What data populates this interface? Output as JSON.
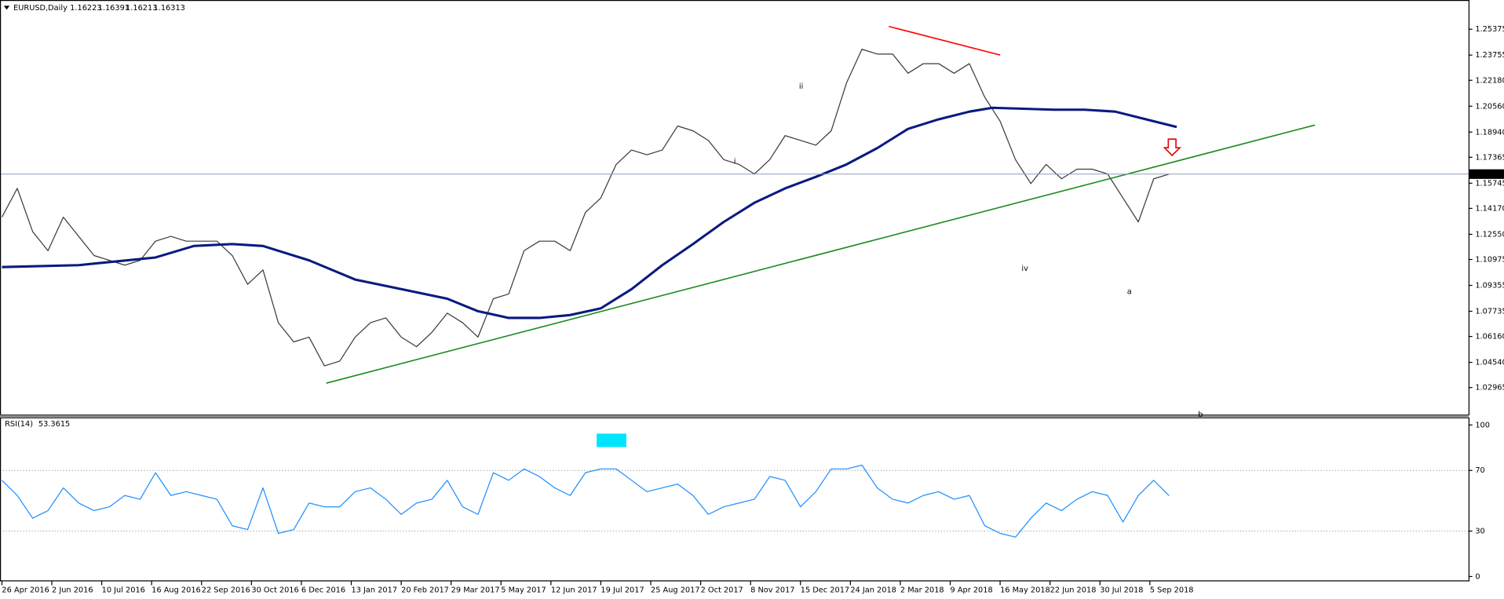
{
  "chart_data": [
    {
      "type": "line",
      "title": "EURUSD,Daily",
      "ohlc": [
        1.16223,
        1.16391,
        1.16213,
        1.16313
      ],
      "xlim": [
        -1,
        764
      ],
      "ylim": [
        1.01285,
        1.272
      ],
      "yticks": [
        1.25375,
        1.23755,
        {
          "value": 1.2218,
          "label": "1.22180"
        },
        {
          "value": 1.2056,
          "label": "1.20560"
        },
        {
          "value": 1.1894,
          "label": "1.18940"
        },
        1.17365,
        1.15745,
        {
          "value": 1.1417,
          "label": "1.14170"
        },
        {
          "value": 1.1255,
          "label": "1.12550"
        },
        1.10975,
        1.09355,
        1.07735,
        {
          "value": 1.0616,
          "label": "1.06160"
        },
        {
          "value": 1.0454,
          "label": "1.04540"
        },
        1.02965
      ],
      "xticks": [
        {
          "value": 0,
          "label": "26 Apr 2016"
        },
        {
          "value": 26,
          "label": "2 Jun 2016"
        },
        {
          "value": 52,
          "label": "10 Jul 2016"
        },
        {
          "value": 78,
          "label": "16 Aug 2016"
        },
        {
          "value": 104,
          "label": "22 Sep 2016"
        },
        {
          "value": 130,
          "label": "30 Oct 2016"
        },
        {
          "value": 156,
          "label": "6 Dec 2016"
        },
        {
          "value": 182,
          "label": "13 Jan 2017"
        },
        {
          "value": 208,
          "label": "20 Feb 2017"
        },
        {
          "value": 234,
          "label": "29 Mar 2017"
        },
        {
          "value": 260,
          "label": "5 May 2017"
        },
        {
          "value": 286,
          "label": "12 Jun 2017"
        },
        {
          "value": 312,
          "label": "19 Jul 2017"
        },
        {
          "value": 338,
          "label": "25 Aug 2017"
        },
        {
          "value": 364,
          "label": "2 Oct 2017"
        },
        {
          "value": 390,
          "label": "8 Nov 2017"
        },
        {
          "value": 416,
          "label": "15 Dec 2017"
        },
        {
          "value": 442,
          "label": "24 Jan 2018"
        },
        {
          "value": 468,
          "label": "2 Mar 2018"
        },
        {
          "value": 494,
          "label": "9 Apr 2018"
        },
        {
          "value": 520,
          "label": "16 May 2018"
        },
        {
          "value": 546,
          "label": "22 Jun 2018"
        },
        {
          "value": 572,
          "label": "30 Jul 2018"
        },
        {
          "value": 598,
          "label": "5 Sep 2018"
        }
      ],
      "series": [
        {
          "color": "#3a3a3a",
          "width": 1,
          "x": [
            0,
            8,
            16,
            24,
            32,
            40,
            48,
            56,
            64,
            72,
            80,
            88,
            96,
            104,
            112,
            120,
            128,
            136,
            144,
            152,
            160,
            168,
            176,
            184,
            192,
            200,
            208,
            216,
            224,
            232,
            240,
            248,
            256,
            264,
            272,
            280,
            288,
            296,
            304,
            312,
            320,
            328,
            336,
            344,
            352,
            360,
            368,
            376,
            384,
            392,
            400,
            408,
            416,
            424,
            432,
            440,
            448,
            456,
            464,
            472,
            480,
            488,
            496,
            504,
            512,
            520,
            528,
            536,
            544,
            552,
            560,
            568,
            576,
            584,
            592,
            600,
            608
          ],
          "values": [
            1.1362,
            1.1542,
            1.1272,
            1.1152,
            1.1362,
            1.1242,
            1.1122,
            1.1092,
            1.1062,
            1.1092,
            1.1212,
            1.1242,
            1.1212,
            1.1212,
            1.1212,
            1.1122,
            1.0942,
            1.1032,
            1.0702,
            1.0582,
            1.0612,
            1.0432,
            1.0462,
            1.0612,
            1.0702,
            1.0732,
            1.0612,
            1.0552,
            1.0642,
            1.0762,
            1.0702,
            1.0612,
            1.0852,
            1.0882,
            1.1152,
            1.1212,
            1.1212,
            1.1152,
            1.1392,
            1.1482,
            1.1692,
            1.1782,
            1.1752,
            1.1782,
            1.1932,
            1.1902,
            1.1842,
            1.1722,
            1.1692,
            1.1632,
            1.1722,
            1.1872,
            1.1842,
            1.1812,
            1.1902,
            1.2202,
            1.2412,
            1.2382,
            1.2382,
            1.2262,
            1.2322,
            1.2322,
            1.2262,
            1.2322,
            1.2112,
            1.1962,
            1.1722,
            1.1572,
            1.1692,
            1.1602,
            1.1662,
            1.1662,
            1.1632,
            1.1482,
            1.1332,
            1.1602,
            1.1631
          ]
        },
        {
          "color": "#0a1a80",
          "width": 2.5,
          "x": [
            0,
            40,
            80,
            100,
            120,
            136,
            160,
            184,
            208,
            232,
            248,
            264,
            280,
            296,
            312,
            328,
            344,
            360,
            376,
            392,
            408,
            424,
            440,
            456,
            472,
            488,
            504,
            516,
            532,
            548,
            564,
            580,
            596,
            612
          ],
          "values": [
            1.105,
            1.1062,
            1.111,
            1.1182,
            1.1194,
            1.1182,
            1.1092,
            1.0972,
            1.0912,
            1.0852,
            1.0774,
            1.0732,
            1.0732,
            1.075,
            1.0792,
            1.0912,
            1.1062,
            1.1194,
            1.1332,
            1.1452,
            1.1542,
            1.1614,
            1.1692,
            1.1794,
            1.1914,
            1.1974,
            1.2022,
            1.2046,
            1.204,
            1.2034,
            1.2034,
            1.2022,
            1.1974,
            1.1926
          ]
        },
        {
          "color": "#1a8a1a",
          "width": 1.3,
          "x": [
            169,
            684
          ],
          "values": [
            1.0324,
            1.1938
          ]
        },
        {
          "color": "#ff0000",
          "width": 1.3,
          "x": [
            462,
            520
          ],
          "values": [
            1.2555,
            1.2376
          ]
        }
      ],
      "annotations": [
        {
          "text": "ii",
          "color": "#1a1a8c"
        },
        {
          "text": "i",
          "color": "#1a1a8c"
        },
        {
          "text": "iv",
          "color": "#1a1a8c"
        },
        {
          "text": "a",
          "color": "#e00000"
        },
        {
          "text": "b",
          "color": "#e00000"
        }
      ]
    },
    {
      "type": "line",
      "title": "RSI(14)",
      "last_value": 53.3615,
      "xlim": [
        -1,
        764
      ],
      "ylim": [
        0,
        100
      ],
      "yticks": [
        100,
        70,
        30,
        0
      ],
      "levels": [
        70,
        30
      ],
      "series": [
        {
          "color": "#1e8fff",
          "width": 1,
          "x": [
            0,
            8,
            16,
            24,
            32,
            40,
            48,
            56,
            64,
            72,
            80,
            88,
            96,
            104,
            112,
            120,
            128,
            136,
            144,
            152,
            160,
            168,
            176,
            184,
            192,
            200,
            208,
            216,
            224,
            232,
            240,
            248,
            256,
            264,
            272,
            280,
            288,
            296,
            304,
            312,
            320,
            328,
            336,
            344,
            352,
            360,
            368,
            376,
            384,
            392,
            400,
            408,
            416,
            424,
            432,
            440,
            448,
            456,
            464,
            472,
            480,
            488,
            496,
            504,
            512,
            520,
            528,
            536,
            544,
            552,
            560,
            568,
            576,
            584,
            592,
            600,
            608
          ],
          "values": [
            63.5,
            53.5,
            38.5,
            43.5,
            58.5,
            48.5,
            43.5,
            46,
            53.5,
            51,
            68.5,
            53.5,
            56,
            53.5,
            51,
            33.5,
            31,
            58.5,
            28.5,
            31,
            48.5,
            46,
            46,
            56,
            58.5,
            51,
            41,
            48.5,
            51,
            63.5,
            46,
            41,
            68.5,
            63.5,
            71,
            66,
            58.5,
            53.5,
            68.5,
            71,
            71,
            63.5,
            56,
            58.5,
            61,
            53.5,
            41,
            46,
            48.5,
            51,
            66,
            63.5,
            46,
            56,
            71,
            71,
            73.5,
            58.5,
            51,
            48.5,
            53.5,
            56,
            51,
            53.5,
            33.5,
            28.5,
            26,
            38.5,
            48.5,
            43.5,
            51,
            56,
            53.5,
            36,
            53.5,
            63.5,
            53.36
          ]
        }
      ]
    }
  ]
}
